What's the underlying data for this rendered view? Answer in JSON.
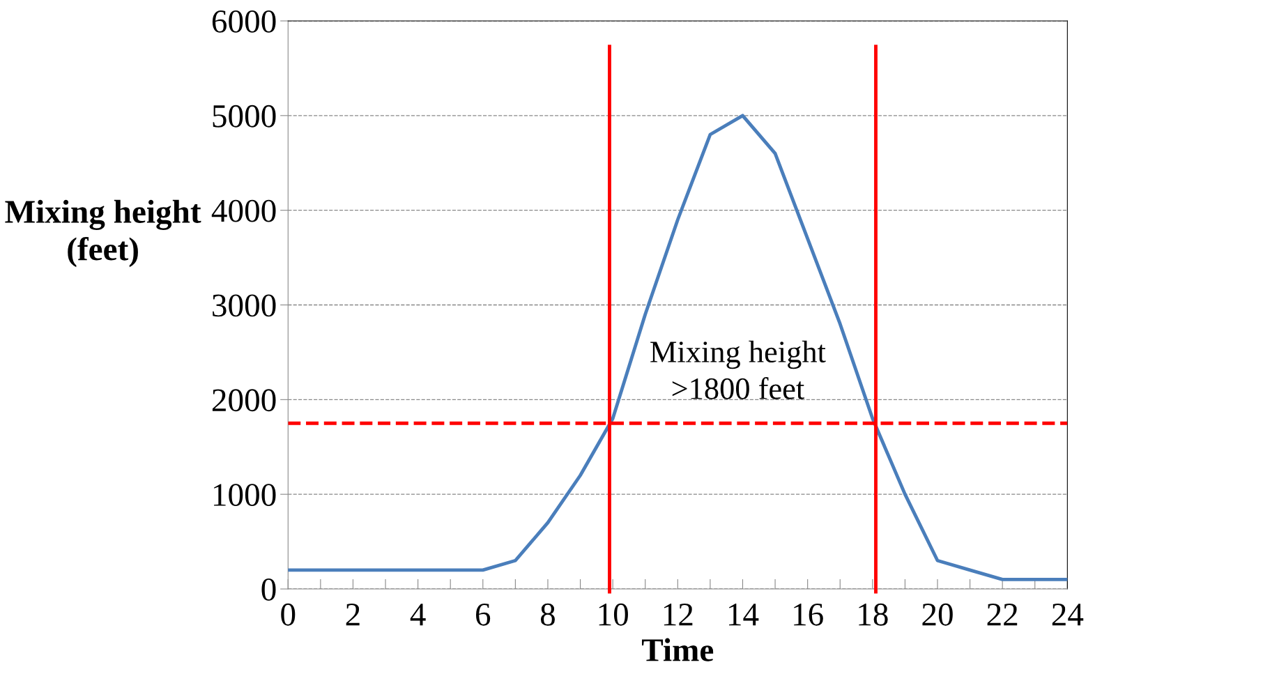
{
  "chart_data": {
    "type": "line",
    "xlabel": "Time",
    "ylabel": "Mixing height\n(feet)",
    "x": [
      0,
      1,
      2,
      3,
      4,
      5,
      6,
      7,
      8,
      9,
      10,
      11,
      12,
      13,
      14,
      15,
      16,
      17,
      18,
      19,
      20,
      21,
      22,
      23,
      24
    ],
    "series": [
      {
        "color": "#4a7ebb",
        "values": [
          200,
          200,
          200,
          200,
          200,
          200,
          200,
          300,
          700,
          1200,
          1800,
          2900,
          3900,
          4800,
          5000,
          4600,
          3700,
          2800,
          1800,
          1000,
          300,
          200,
          100,
          100,
          100
        ]
      }
    ],
    "xlim": [
      0,
      24
    ],
    "ylim": [
      0,
      6000
    ],
    "xticks": [
      0,
      {
        "value": 1,
        "label": null
      },
      2,
      {
        "value": 3,
        "label": null
      },
      4,
      {
        "value": 5,
        "label": null
      },
      6,
      {
        "value": 7,
        "label": null
      },
      8,
      {
        "value": 9,
        "label": null
      },
      10,
      {
        "value": 11,
        "label": null
      },
      12,
      {
        "value": 13,
        "label": null
      },
      14,
      {
        "value": 15,
        "label": null
      },
      16,
      {
        "value": 17,
        "label": null
      },
      18,
      {
        "value": 19,
        "label": null
      },
      20,
      {
        "value": 21,
        "label": null
      },
      22,
      {
        "value": 23,
        "label": null
      },
      24
    ],
    "yticks": [
      0,
      1000,
      2000,
      3000,
      4000,
      5000,
      6000
    ],
    "grid": "y",
    "marker": "none",
    "line_style": "solid",
    "legend": false,
    "ref_lines": [
      {
        "axis": "y",
        "value": 1750,
        "color": "#ff0000",
        "line_style": "dashed"
      },
      {
        "axis": "x",
        "value": 9.9,
        "color": "#ff0000",
        "line_style": "solid"
      },
      {
        "axis": "x",
        "value": 18.1,
        "color": "#ff0000",
        "line_style": "solid"
      }
    ],
    "annotations": [
      "Mixing height\n>1800 feet"
    ]
  }
}
